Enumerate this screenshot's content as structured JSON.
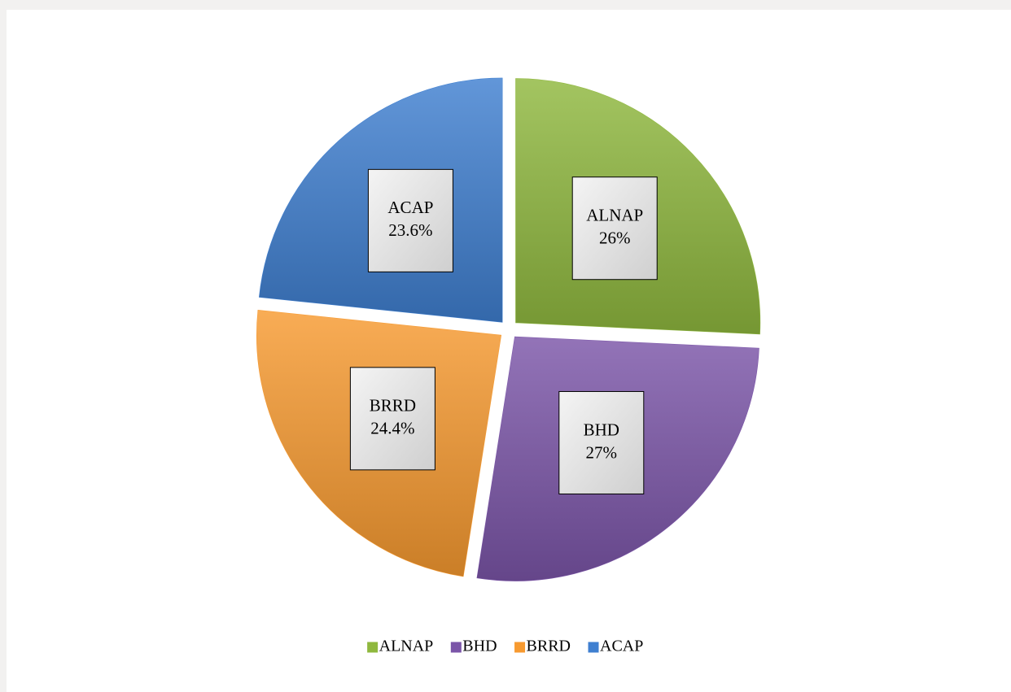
{
  "chart_data": {
    "type": "pie",
    "categories": [
      "ALNAP",
      "BHD",
      "BRRD",
      "ACAP"
    ],
    "values": [
      26,
      27,
      24.4,
      23.6
    ],
    "value_labels": [
      "26%",
      "27%",
      "24.4%",
      "23.6%"
    ],
    "colors": [
      "#8fb83e",
      "#7b55a8",
      "#f79a30",
      "#3f7fd0"
    ],
    "legend": "bottom"
  }
}
